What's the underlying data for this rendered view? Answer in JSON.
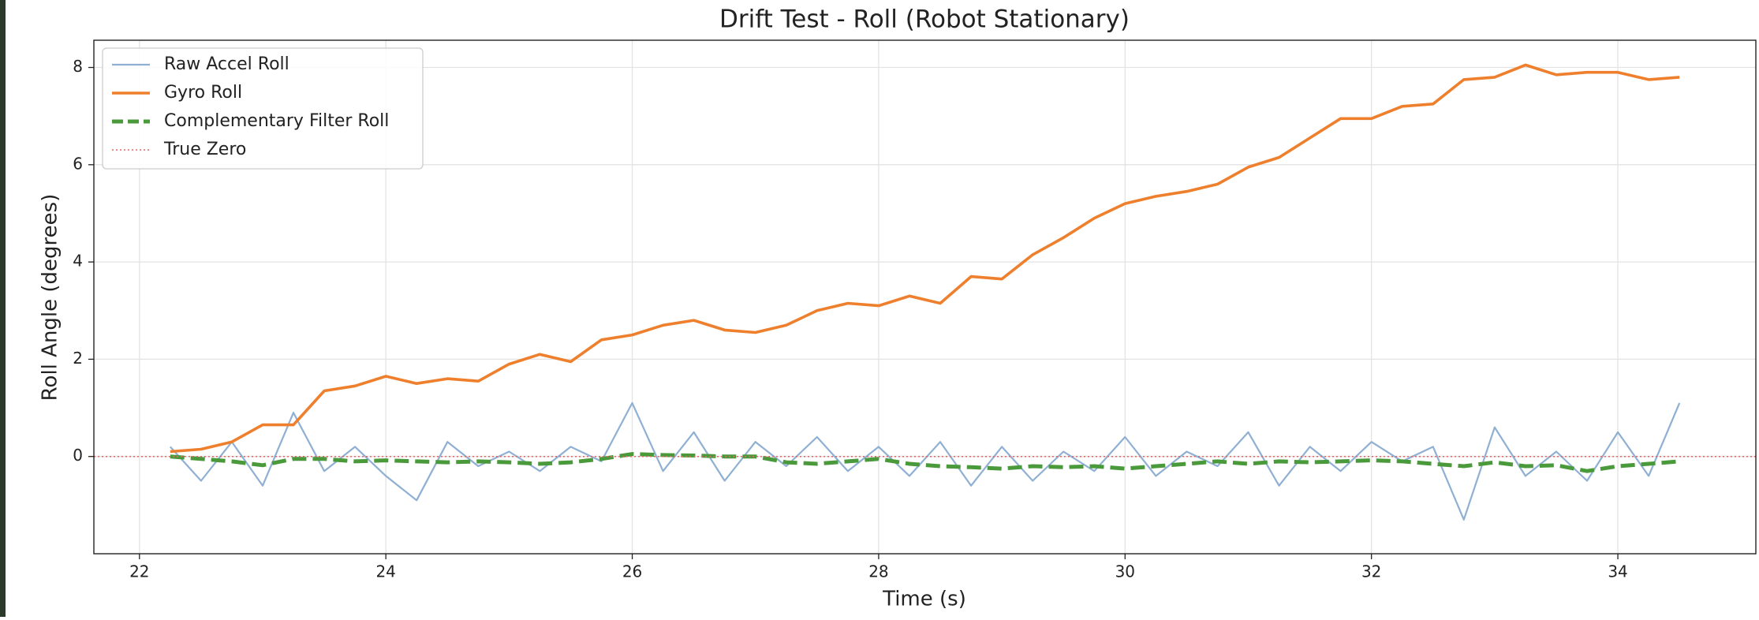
{
  "chart_data": {
    "type": "line",
    "title": "Drift Test - Roll (Robot Stationary)",
    "xlabel": "Time (s)",
    "ylabel": "Roll Angle (degrees)",
    "x": [
      22.25,
      22.5,
      22.75,
      23,
      23.25,
      23.5,
      23.75,
      24,
      24.25,
      24.5,
      24.75,
      25,
      25.25,
      25.5,
      25.75,
      26,
      26.25,
      26.5,
      26.75,
      27,
      27.25,
      27.5,
      27.75,
      28,
      28.25,
      28.5,
      28.75,
      29,
      29.25,
      29.5,
      29.75,
      30,
      30.25,
      30.5,
      30.75,
      31,
      31.25,
      31.5,
      31.75,
      32,
      32.25,
      32.5,
      32.75,
      33,
      33.25,
      33.5,
      33.75,
      34,
      34.25,
      34.5
    ],
    "series": [
      {
        "name": "Raw Accel Roll",
        "color": "#8fb0d3",
        "linestyle": "solid",
        "values": [
          0.2,
          -0.5,
          0.3,
          -0.6,
          0.9,
          -0.3,
          0.2,
          -0.4,
          -0.9,
          0.3,
          -0.2,
          0.1,
          -0.3,
          0.2,
          -0.1,
          1.1,
          -0.3,
          0.5,
          -0.5,
          0.3,
          -0.2,
          0.4,
          -0.3,
          0.2,
          -0.4,
          0.3,
          -0.6,
          0.2,
          -0.5,
          0.1,
          -0.3,
          0.4,
          -0.4,
          0.1,
          -0.2,
          0.5,
          -0.6,
          0.2,
          -0.3,
          0.3,
          -0.1,
          0.2,
          -1.3,
          0.6,
          -0.4,
          0.1,
          -0.5,
          0.5,
          -0.4,
          1.1
        ]
      },
      {
        "name": "Gyro Roll",
        "color": "#ee7f2d",
        "linestyle": "solid",
        "values": [
          0.1,
          0.15,
          0.3,
          0.65,
          0.65,
          1.35,
          1.45,
          1.65,
          1.5,
          1.6,
          1.55,
          1.9,
          2.1,
          1.95,
          2.4,
          2.5,
          2.7,
          2.8,
          2.6,
          2.55,
          2.7,
          3.0,
          3.15,
          3.1,
          3.3,
          3.15,
          3.7,
          3.65,
          4.15,
          4.5,
          4.9,
          5.2,
          5.35,
          5.45,
          5.6,
          5.95,
          6.15,
          6.55,
          6.95,
          6.95,
          7.2,
          7.25,
          7.75,
          7.8,
          8.05,
          7.85,
          7.9,
          7.9,
          7.75,
          7.8
        ]
      },
      {
        "name": "Complementary Filter Roll",
        "color": "#4a9a3c",
        "linestyle": "dashed",
        "values": [
          0.0,
          -0.05,
          -0.1,
          -0.18,
          -0.05,
          -0.05,
          -0.1,
          -0.08,
          -0.1,
          -0.12,
          -0.1,
          -0.12,
          -0.15,
          -0.12,
          -0.05,
          0.05,
          0.03,
          0.02,
          0.0,
          0.0,
          -0.12,
          -0.15,
          -0.1,
          -0.05,
          -0.15,
          -0.2,
          -0.22,
          -0.25,
          -0.2,
          -0.22,
          -0.2,
          -0.25,
          -0.2,
          -0.15,
          -0.1,
          -0.15,
          -0.1,
          -0.12,
          -0.1,
          -0.08,
          -0.1,
          -0.15,
          -0.2,
          -0.12,
          -0.2,
          -0.18,
          -0.3,
          -0.2,
          -0.15,
          -0.1
        ]
      }
    ],
    "reference_line": {
      "name": "True Zero",
      "value": 0,
      "color": "#e06666"
    },
    "xlim": [
      21.63,
      35.12
    ],
    "xticks": [
      22,
      24,
      26,
      28,
      30,
      32,
      34
    ],
    "ylim": [
      -2.0,
      8.56
    ],
    "yticks": [
      0,
      2,
      4,
      6,
      8
    ],
    "grid": true,
    "legend": "upper left"
  }
}
